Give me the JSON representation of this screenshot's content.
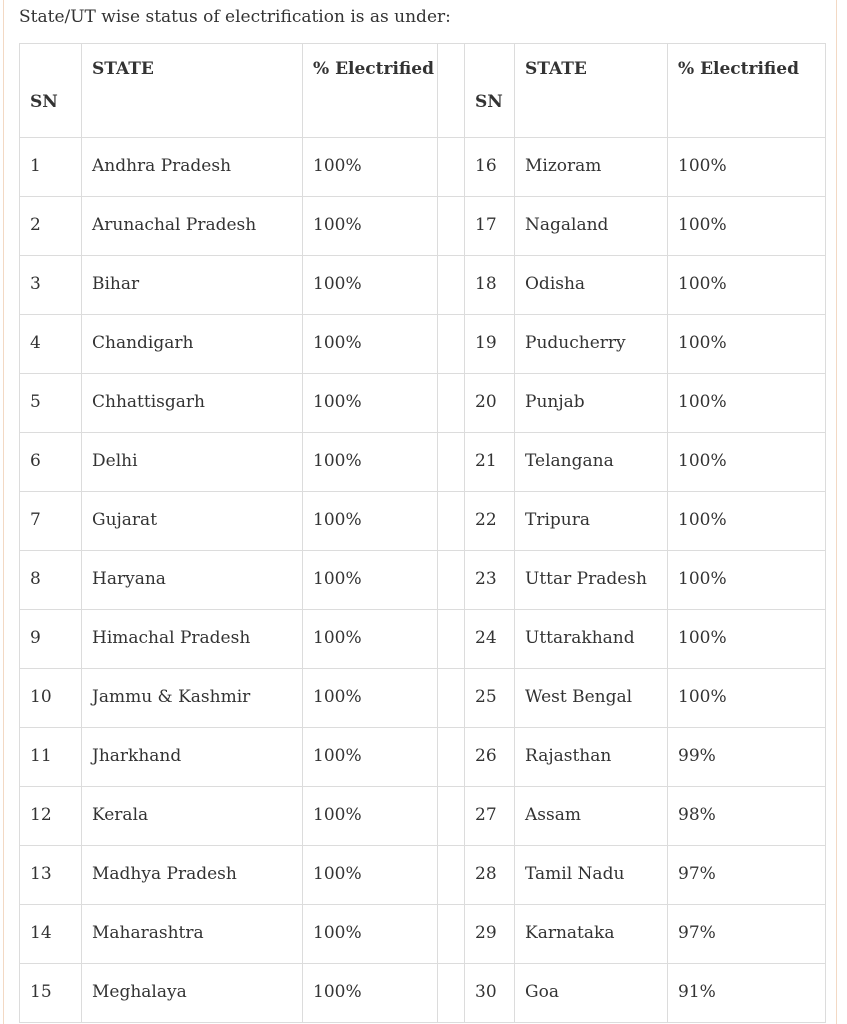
{
  "intro": "State/UT wise status of electrification is as under:",
  "table": {
    "header": [
      "SN",
      "STATE",
      "% Electrified",
      "SN",
      "STATE",
      "% Electrified"
    ],
    "rows": [
      [
        "1",
        "Andhra Pradesh",
        "100%",
        "16",
        "Mizoram",
        "100%"
      ],
      [
        "2",
        "Arunachal Pradesh",
        "100%",
        "17",
        "Nagaland",
        "100%"
      ],
      [
        "3",
        "Bihar",
        "100%",
        "18",
        "Odisha",
        "100%"
      ],
      [
        "4",
        "Chandigarh",
        "100%",
        "19",
        "Puducherry",
        "100%"
      ],
      [
        "5",
        "Chhattisgarh",
        "100%",
        "20",
        "Punjab",
        "100%"
      ],
      [
        "6",
        "Delhi",
        "100%",
        "21",
        "Telangana",
        "100%"
      ],
      [
        "7",
        "Gujarat",
        "100%",
        "22",
        "Tripura",
        "100%"
      ],
      [
        "8",
        "Haryana",
        "100%",
        "23",
        "Uttar Pradesh",
        "100%"
      ],
      [
        "9",
        "Himachal Pradesh",
        "100%",
        "24",
        "Uttarakhand",
        "100%"
      ],
      [
        "10",
        "Jammu & Kashmir",
        "100%",
        "25",
        "West Bengal",
        "100%"
      ],
      [
        "11",
        "Jharkhand",
        "100%",
        "26",
        "Rajasthan",
        "99%"
      ],
      [
        "12",
        "Kerala",
        "100%",
        "27",
        "Assam",
        "98%"
      ],
      [
        "13",
        "Madhya Pradesh",
        "100%",
        "28",
        "Tamil Nadu",
        "97%"
      ],
      [
        "14",
        "Maharashtra",
        "100%",
        "29",
        "Karnataka",
        "97%"
      ],
      [
        "15",
        "Meghalaya",
        "100%",
        "30",
        "Goa",
        "91%"
      ]
    ]
  }
}
